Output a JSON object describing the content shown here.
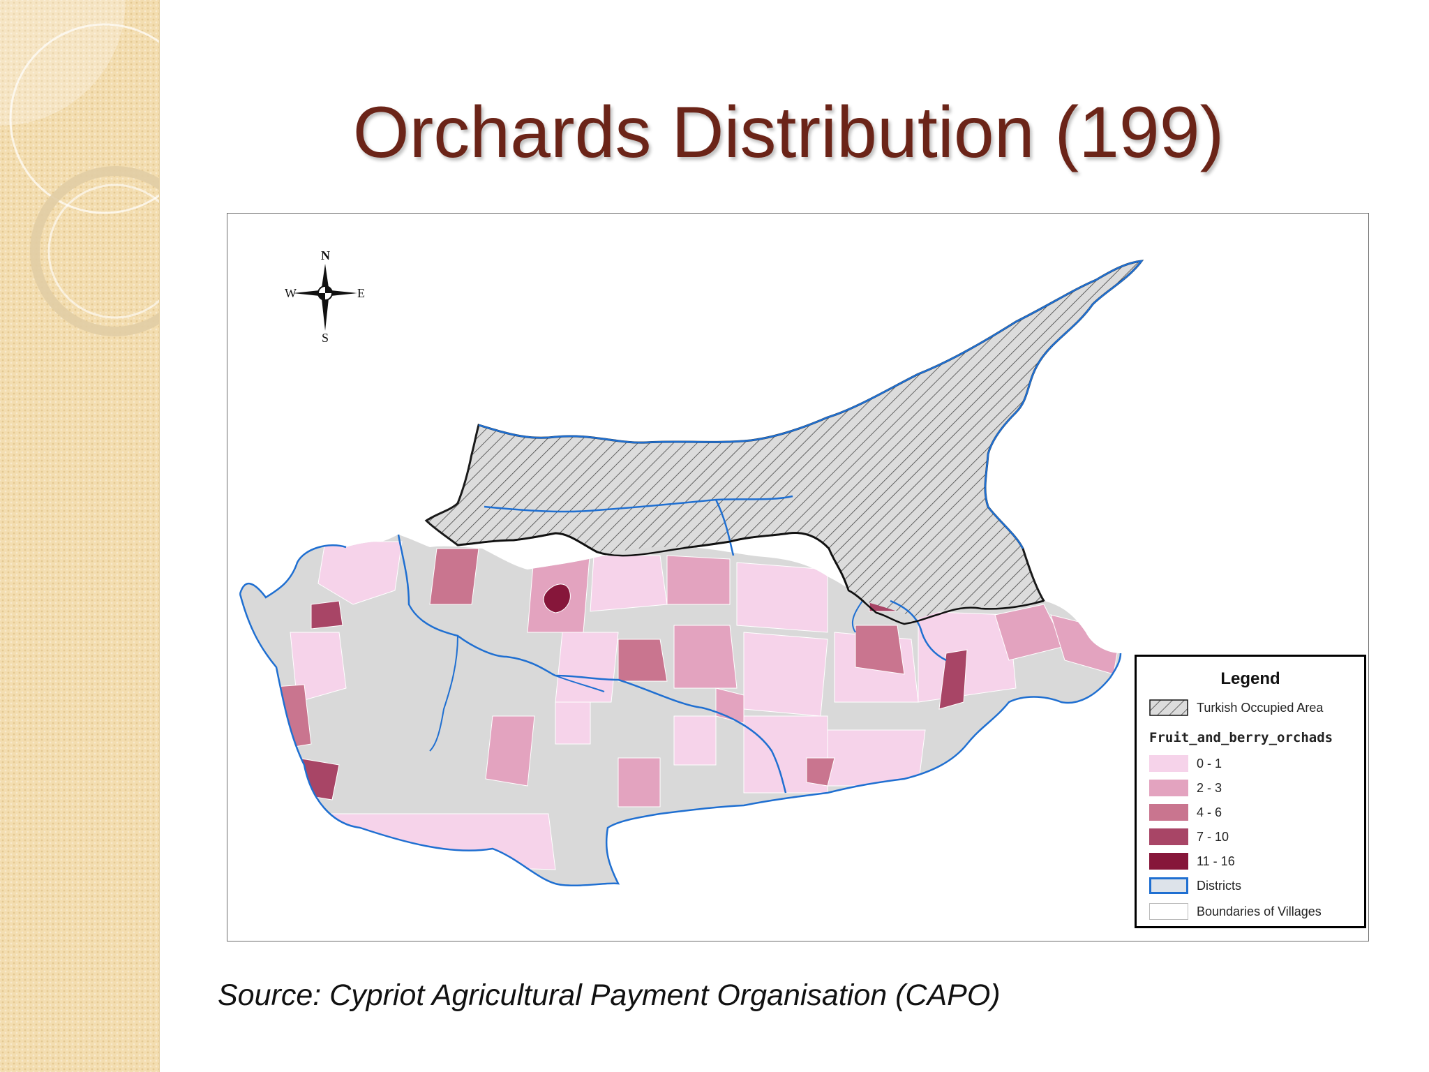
{
  "slide": {
    "title": "Orchards Distribution (199)",
    "source": "Source: Cypriot Agricultural Payment Organisation (CAPO)"
  },
  "map": {
    "compass": {
      "north": "N",
      "south": "S",
      "east": "E",
      "west": "W"
    },
    "legend": {
      "title": "Legend",
      "occupied_label": "Turkish Occupied Area",
      "field_name": "Fruit_and_berry_orchads",
      "classes": [
        {
          "label": "0 - 1",
          "color": "#f6d3ea"
        },
        {
          "label": "2 - 3",
          "color": "#e3a3bf"
        },
        {
          "label": "4 - 6",
          "color": "#c9758f"
        },
        {
          "label": "7 - 10",
          "color": "#a84566"
        },
        {
          "label": "11 - 16",
          "color": "#86163a"
        }
      ],
      "districts_label": "Districts",
      "villages_label": "Boundaries of Villages"
    },
    "colors": {
      "district_border": "#1f6fd1",
      "land_gray": "#d9d9d9",
      "occupied_hatch": "#444444",
      "title": "#6b2418"
    }
  }
}
